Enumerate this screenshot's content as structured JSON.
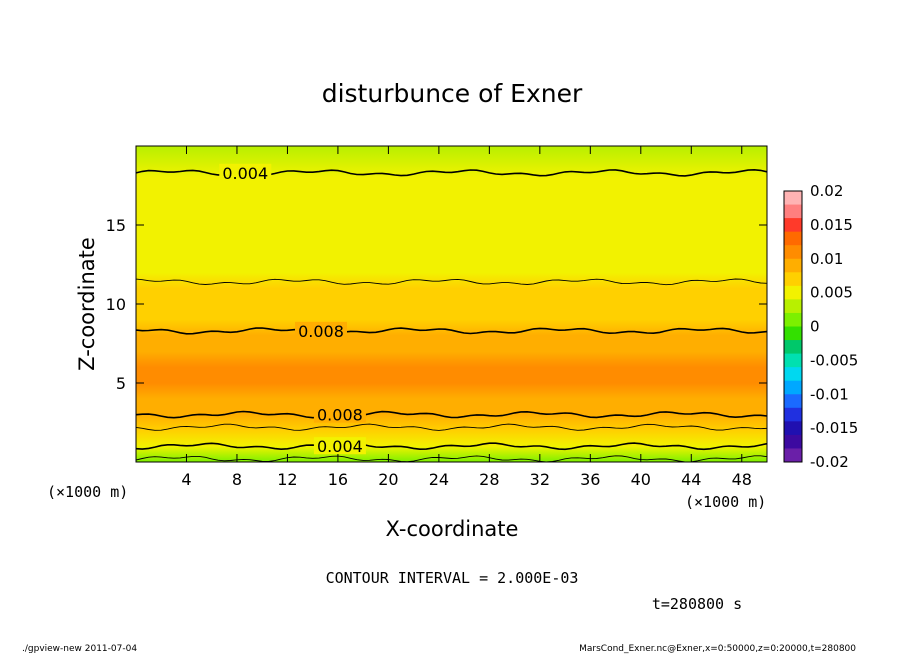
{
  "chart_data": {
    "type": "heatmap",
    "title": "disturbunce of Exner",
    "xlabel": "X-coordinate",
    "ylabel": "Z-coordinate",
    "x_unit": "(×1000 m)",
    "y_unit": "(×1000 m)",
    "xlim": [
      0,
      50
    ],
    "ylim": [
      0,
      20
    ],
    "x_ticks": [
      4,
      8,
      12,
      16,
      20,
      24,
      28,
      32,
      36,
      40,
      44,
      48
    ],
    "y_ticks": [
      5,
      10,
      15
    ],
    "colorbar": {
      "labels": [
        "0.02",
        "0.015",
        "0.01",
        "0.005",
        "0",
        "-0.005",
        "-0.01",
        "-0.015",
        "-0.02"
      ],
      "range": [
        -0.02,
        0.02
      ],
      "colors": [
        "#ffb3b3",
        "#ff7f7f",
        "#ff3a2a",
        "#ff6a00",
        "#ff8c00",
        "#ffae00",
        "#ffd000",
        "#f2f200",
        "#b8f000",
        "#7cf000",
        "#33e000",
        "#00c86a",
        "#00e0b0",
        "#00d8f0",
        "#00a8ff",
        "#1a6aff",
        "#2030e0",
        "#2010b0",
        "#3c0aa0",
        "#6a1fa8"
      ]
    },
    "contour_interval": "CONTOUR INTERVAL = 2.000E-03",
    "contour_labels": [
      "0.004",
      "0.008",
      "0.008",
      "0.004"
    ],
    "z_profile": [
      {
        "z": 0.0,
        "value": 0.002
      },
      {
        "z": 1.0,
        "value": 0.0045
      },
      {
        "z": 2.0,
        "value": 0.0068
      },
      {
        "z": 3.0,
        "value": 0.008
      },
      {
        "z": 4.0,
        "value": 0.009
      },
      {
        "z": 5.0,
        "value": 0.01
      },
      {
        "z": 6.0,
        "value": 0.01
      },
      {
        "z": 7.0,
        "value": 0.0091
      },
      {
        "z": 8.0,
        "value": 0.0082
      },
      {
        "z": 9.0,
        "value": 0.0075
      },
      {
        "z": 10.0,
        "value": 0.0068
      },
      {
        "z": 11.0,
        "value": 0.0062
      },
      {
        "z": 12.0,
        "value": 0.0058
      },
      {
        "z": 14.0,
        "value": 0.0052
      },
      {
        "z": 16.0,
        "value": 0.0048
      },
      {
        "z": 18.0,
        "value": 0.0042
      },
      {
        "z": 20.0,
        "value": 0.0035
      }
    ],
    "contours": [
      {
        "level": 0.004,
        "z": 18.3,
        "labeled": true
      },
      {
        "level": 0.006,
        "z": 11.4,
        "labeled": false
      },
      {
        "level": 0.008,
        "z": 8.3,
        "labeled": true
      },
      {
        "level": 0.008,
        "z": 3.0,
        "labeled": true
      },
      {
        "level": 0.006,
        "z": 2.2,
        "labeled": false
      },
      {
        "level": 0.004,
        "z": 1.0,
        "labeled": true
      },
      {
        "level": 0.002,
        "z": 0.2,
        "labeled": false
      }
    ]
  },
  "time_label": "t=280800 s",
  "footer": {
    "left": "./gpview-new   2011-07-04",
    "right": "MarsCond_Exner.nc@Exner,x=0:50000,z=0:20000,t=280800"
  },
  "colors": {
    "background": "#ffffff",
    "line": "#000000"
  }
}
